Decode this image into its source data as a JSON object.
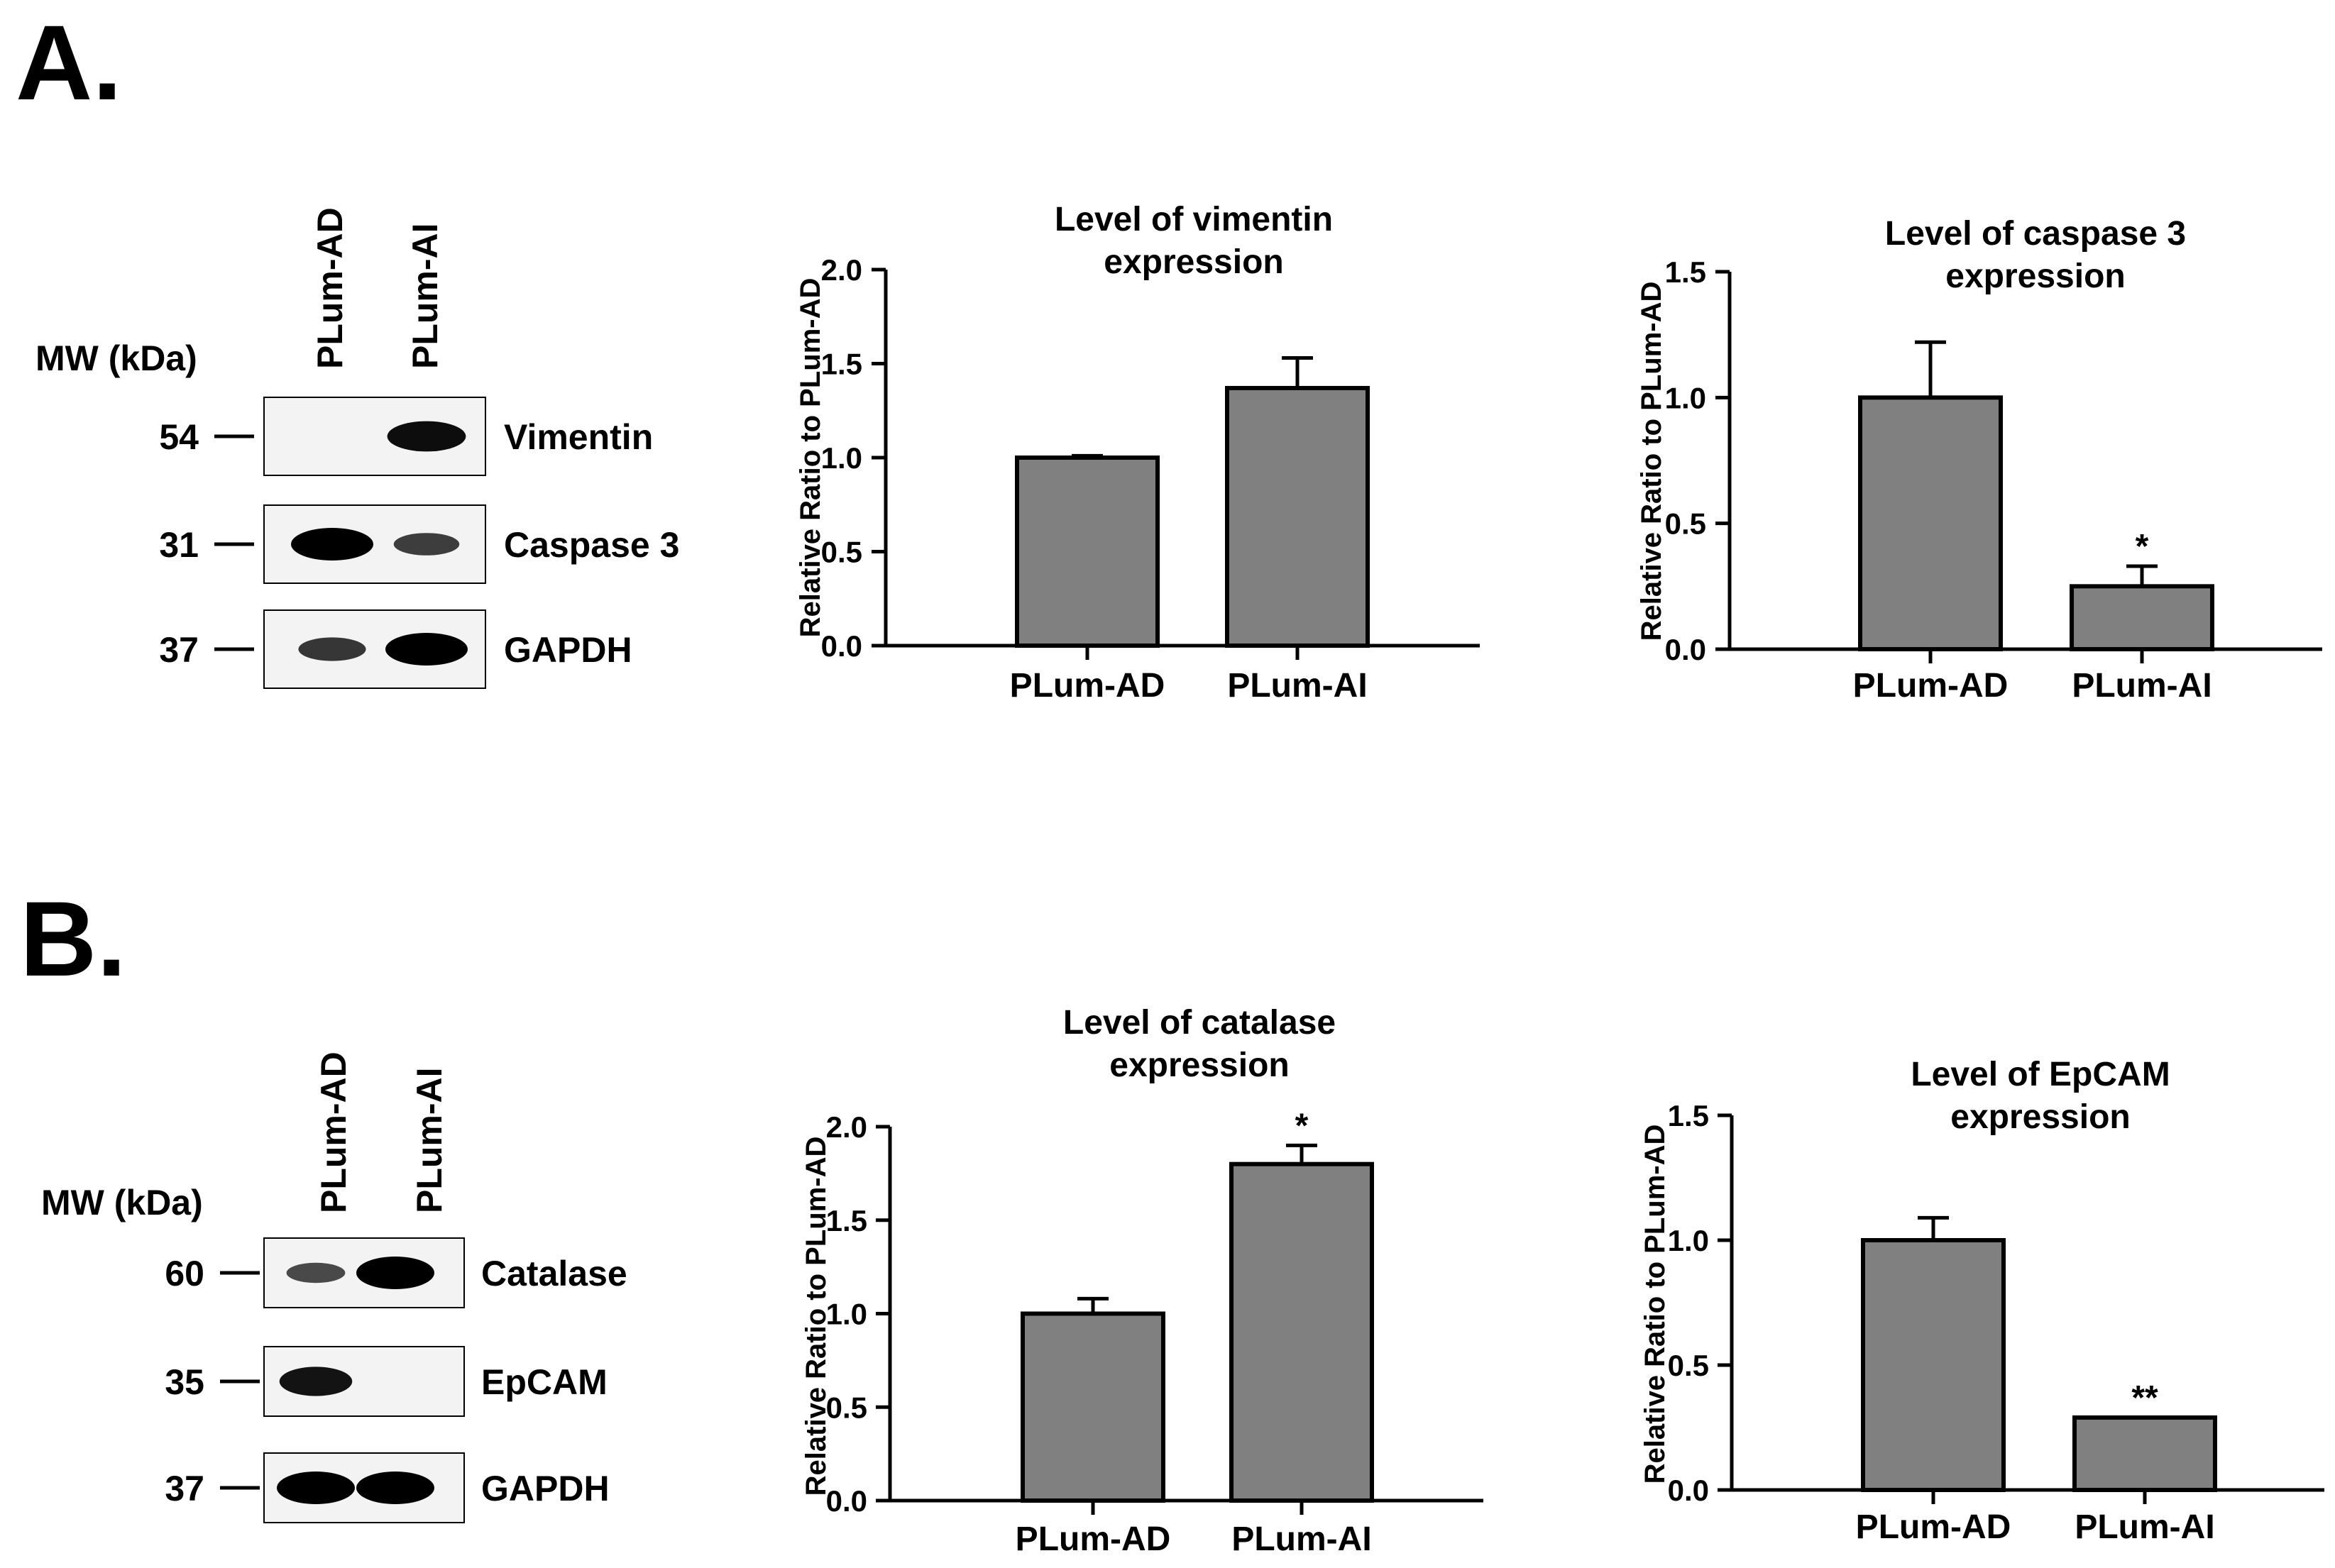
{
  "panels": [
    {
      "letter": "A.",
      "blot": {
        "mw_header": "MW (kDa)",
        "lanes": [
          "PLum-AD",
          "PLum-AI"
        ],
        "rows": [
          {
            "mw": "54",
            "protein": "Vimentin",
            "band_intensity": [
              0.0,
              0.9
            ]
          },
          {
            "mw": "31",
            "protein": "Caspase 3",
            "band_intensity": [
              1.0,
              0.55
            ]
          },
          {
            "mw": "37",
            "protein": "GAPDH",
            "band_intensity": [
              0.6,
              1.0
            ]
          }
        ]
      }
    },
    {
      "letter": "B.",
      "blot": {
        "mw_header": "MW (kDa)",
        "lanes": [
          "PLum-AD",
          "PLum-AI"
        ],
        "rows": [
          {
            "mw": "60",
            "protein": "Catalase",
            "band_intensity": [
              0.45,
              1.0
            ]
          },
          {
            "mw": "35",
            "protein": "EpCAM",
            "band_intensity": [
              0.85,
              0.0
            ]
          },
          {
            "mw": "37",
            "protein": "GAPDH",
            "band_intensity": [
              1.0,
              1.0
            ]
          }
        ]
      }
    }
  ],
  "chart_data": [
    {
      "type": "bar",
      "title": [
        "Level of vimentin",
        "expression"
      ],
      "ylabel": "Relative Ratio to PLum-AD",
      "xlabel": "",
      "categories": [
        "PLum-AD",
        "PLum-AI"
      ],
      "values": [
        1.0,
        1.37
      ],
      "errors": [
        0.01,
        0.16
      ],
      "significance": [
        "",
        ""
      ],
      "ylim": [
        0,
        2.0
      ],
      "yticks": [
        "0.0",
        "0.5",
        "1.0",
        "1.5",
        "2.0"
      ]
    },
    {
      "type": "bar",
      "title": [
        "Level of caspase 3",
        "expression"
      ],
      "ylabel": "Relative Ratio to PLum-AD",
      "xlabel": "",
      "categories": [
        "PLum-AD",
        "PLum-AI"
      ],
      "values": [
        1.0,
        0.25
      ],
      "errors": [
        0.22,
        0.08
      ],
      "significance": [
        "",
        "*"
      ],
      "ylim": [
        0,
        1.5
      ],
      "yticks": [
        "0.0",
        "0.5",
        "1.0",
        "1.5"
      ]
    },
    {
      "type": "bar",
      "title": [
        "Level of catalase",
        "expression"
      ],
      "ylabel": "Relative Ratio to PLum-AD",
      "xlabel": "",
      "categories": [
        "PLum-AD",
        "PLum-AI"
      ],
      "values": [
        1.0,
        1.8
      ],
      "errors": [
        0.08,
        0.1
      ],
      "significance": [
        "",
        "*"
      ],
      "ylim": [
        0,
        2.0
      ],
      "yticks": [
        "0.0",
        "0.5",
        "1.0",
        "1.5",
        "2.0"
      ]
    },
    {
      "type": "bar",
      "title": [
        "Level of EpCAM",
        "expression"
      ],
      "ylabel": "Relative Ratio to PLum-AD",
      "xlabel": "",
      "categories": [
        "PLum-AD",
        "PLum-AI"
      ],
      "values": [
        1.0,
        0.29
      ],
      "errors": [
        0.09,
        0.0
      ],
      "significance": [
        "",
        "**"
      ],
      "ylim": [
        0,
        1.5
      ],
      "yticks": [
        "0.0",
        "0.5",
        "1.0",
        "1.5"
      ]
    }
  ]
}
